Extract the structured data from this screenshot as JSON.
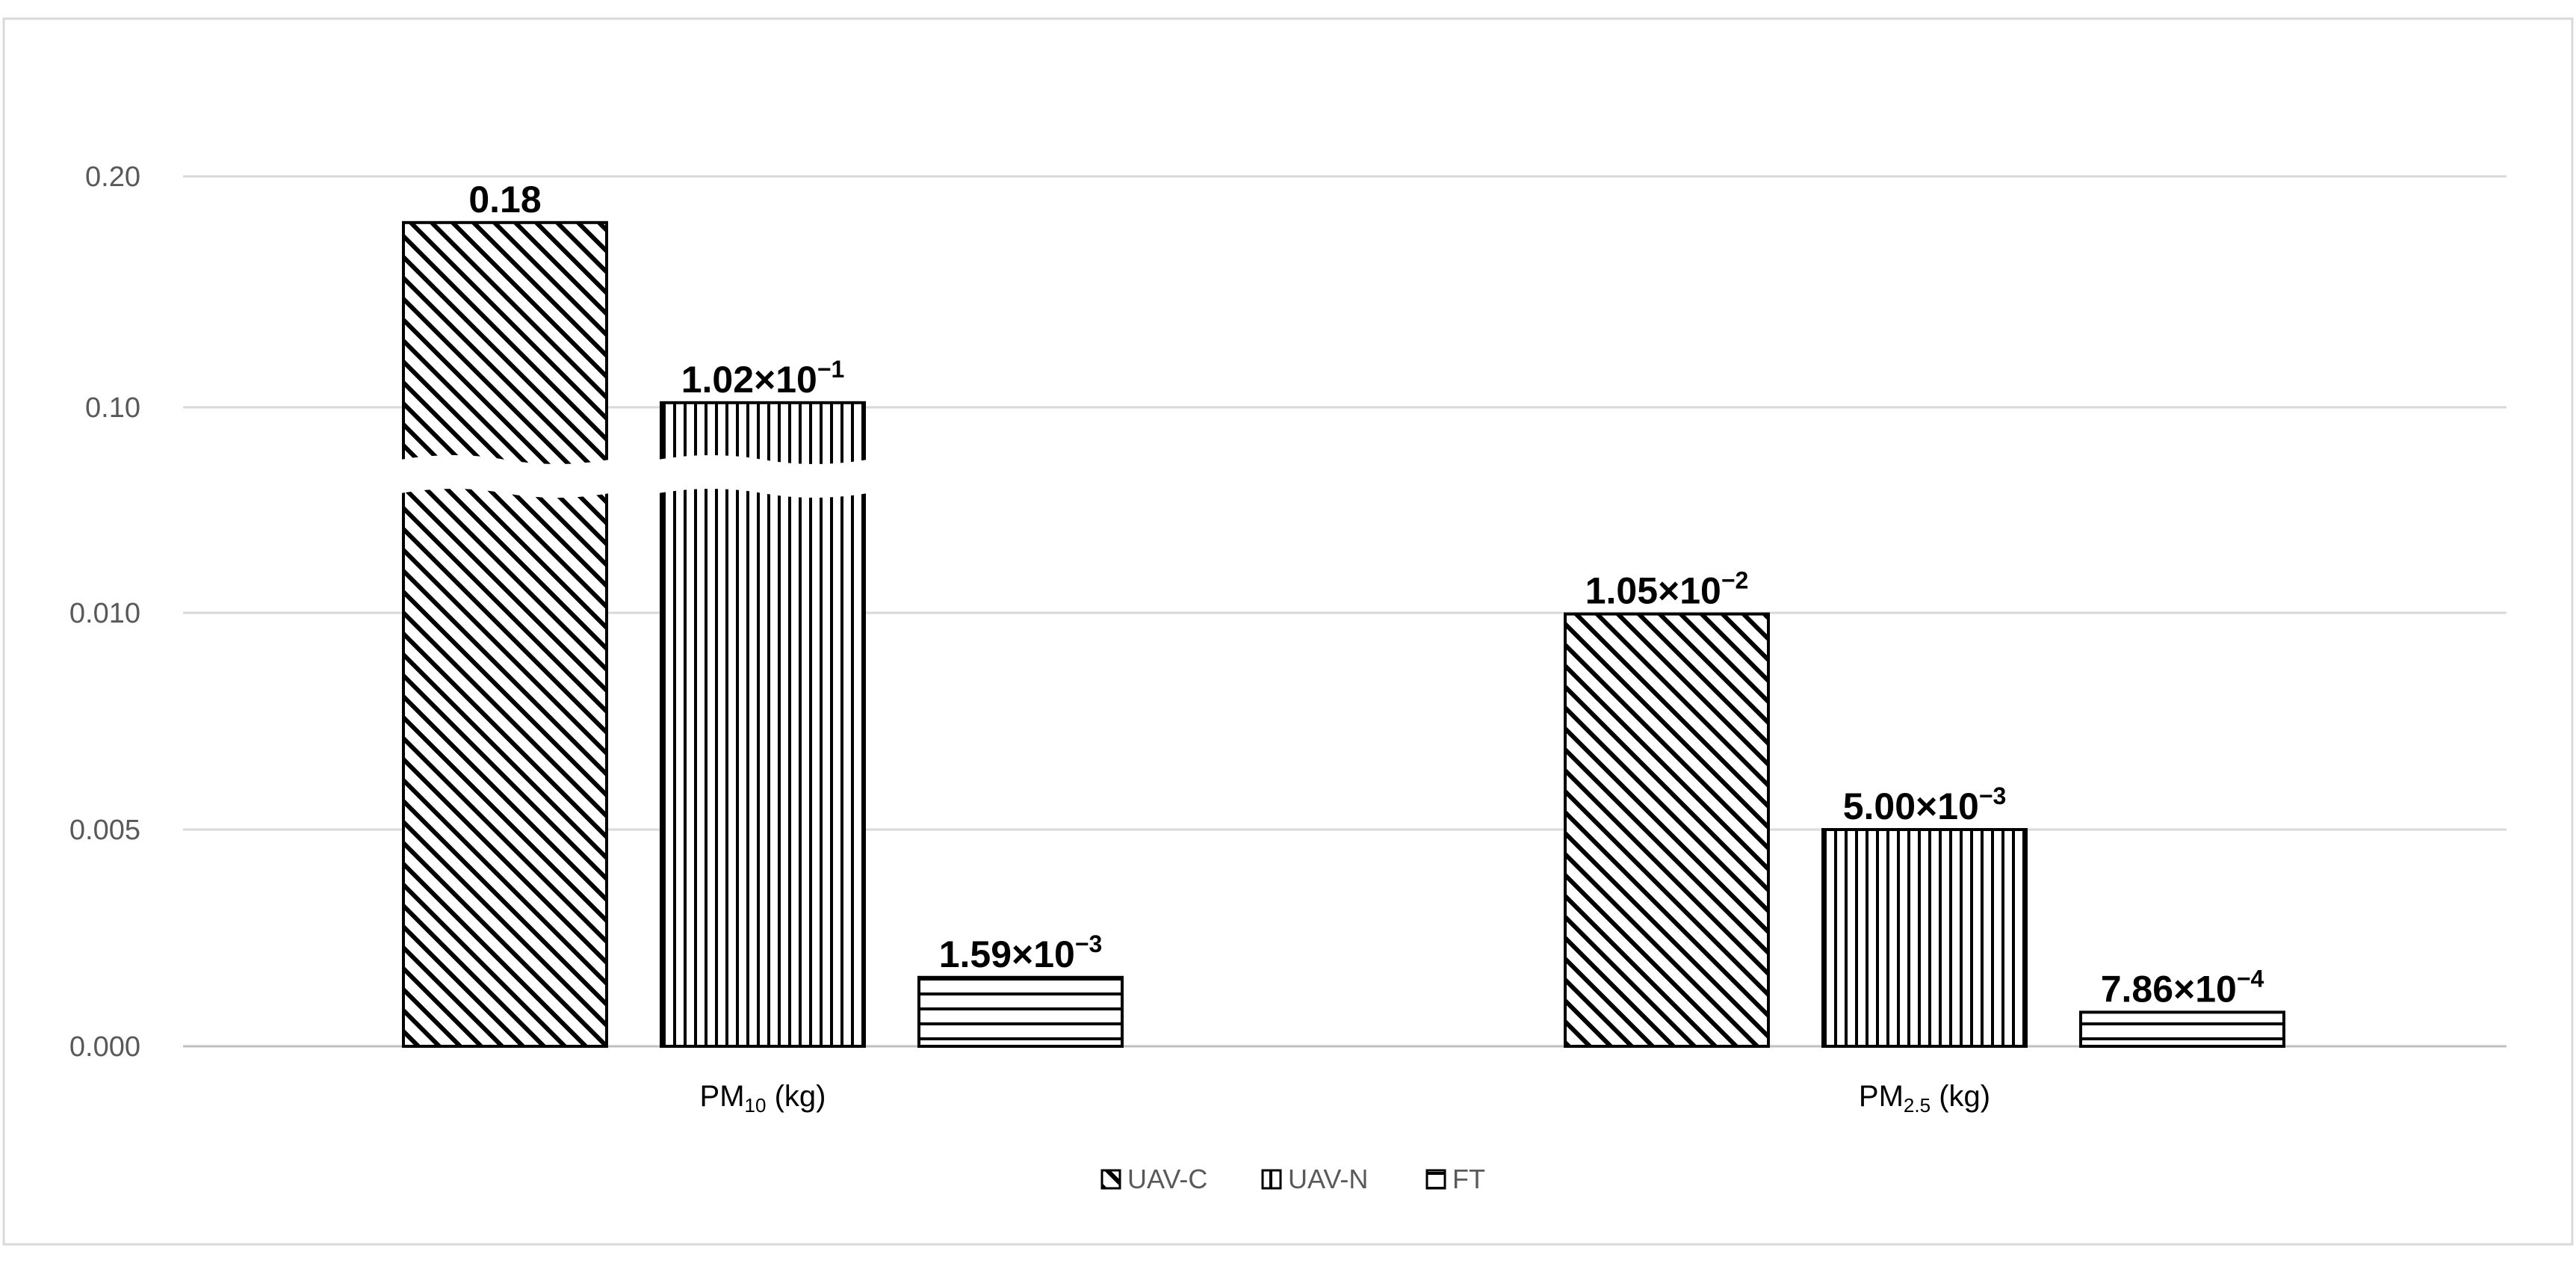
{
  "chart_data": {
    "type": "bar",
    "title": "",
    "xlabel": "",
    "ylabel": "",
    "axis_break": true,
    "grid": true,
    "legend_position": "bottom",
    "y_ticks": [
      "0.000",
      "0.005",
      "0.010",
      "0.10",
      "0.20"
    ],
    "categories": [
      {
        "main": "PM",
        "sub": "10",
        "unit": " (kg)"
      },
      {
        "main": "PM",
        "sub": "2.5",
        "unit": " (kg)"
      }
    ],
    "series": [
      {
        "name": "UAV-C",
        "pattern": "diagonal",
        "values": [
          0.18,
          0.0105
        ],
        "labels": [
          {
            "mantissa": "0.18",
            "exp": ""
          },
          {
            "mantissa": "1.05×10",
            "exp": "−2"
          }
        ]
      },
      {
        "name": "UAV-N",
        "pattern": "vertical",
        "values": [
          0.102,
          0.005
        ],
        "labels": [
          {
            "mantissa": "1.02×10",
            "exp": "−1"
          },
          {
            "mantissa": "5.00×10",
            "exp": "−3"
          }
        ]
      },
      {
        "name": "FT",
        "pattern": "horizontal",
        "values": [
          0.00159,
          0.000786
        ],
        "labels": [
          {
            "mantissa": "1.59×10",
            "exp": "−3"
          },
          {
            "mantissa": "7.86×10",
            "exp": "−4"
          }
        ]
      }
    ],
    "colors": {
      "bar_stroke": "#000000",
      "grid": "#d9d9d9",
      "tick_text": "#595959",
      "frame": "#d9d9d9"
    }
  }
}
